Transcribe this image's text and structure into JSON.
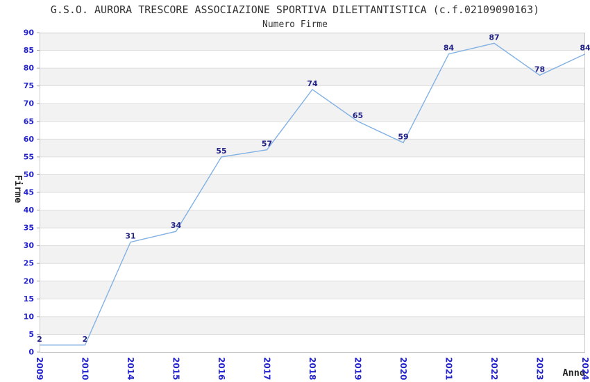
{
  "chart_data": {
    "type": "line",
    "title": "G.S.O. AURORA TRESCORE ASSOCIAZIONE SPORTIVA DILETTANTISTICA (c.f.02109090163)",
    "subtitle": "Numero Firme",
    "xlabel": "Anno",
    "ylabel": "Firme",
    "categories": [
      "2009",
      "2010",
      "2014",
      "2015",
      "2016",
      "2017",
      "2018",
      "2019",
      "2020",
      "2021",
      "2022",
      "2023",
      "2024"
    ],
    "values": [
      2,
      2,
      31,
      34,
      55,
      57,
      74,
      65,
      59,
      84,
      87,
      78,
      84
    ],
    "ylim": [
      0,
      90
    ],
    "ytick_step": 5,
    "xtick_rotation_deg": 90,
    "grid": "alternating-horizontal-bands",
    "legend_position": "none",
    "colors": {
      "series_line": "#82b1e3",
      "data_label": "#232388",
      "axis_tick_label": "#2323cc",
      "band_fill": "#f2f2f2",
      "gridline": "#dedede",
      "plot_border": "#c9c9c9",
      "tick_mark": "#aaaaaa",
      "title_text": "#333333",
      "axis_title_text": "#222222",
      "background": "#ffffff"
    }
  }
}
